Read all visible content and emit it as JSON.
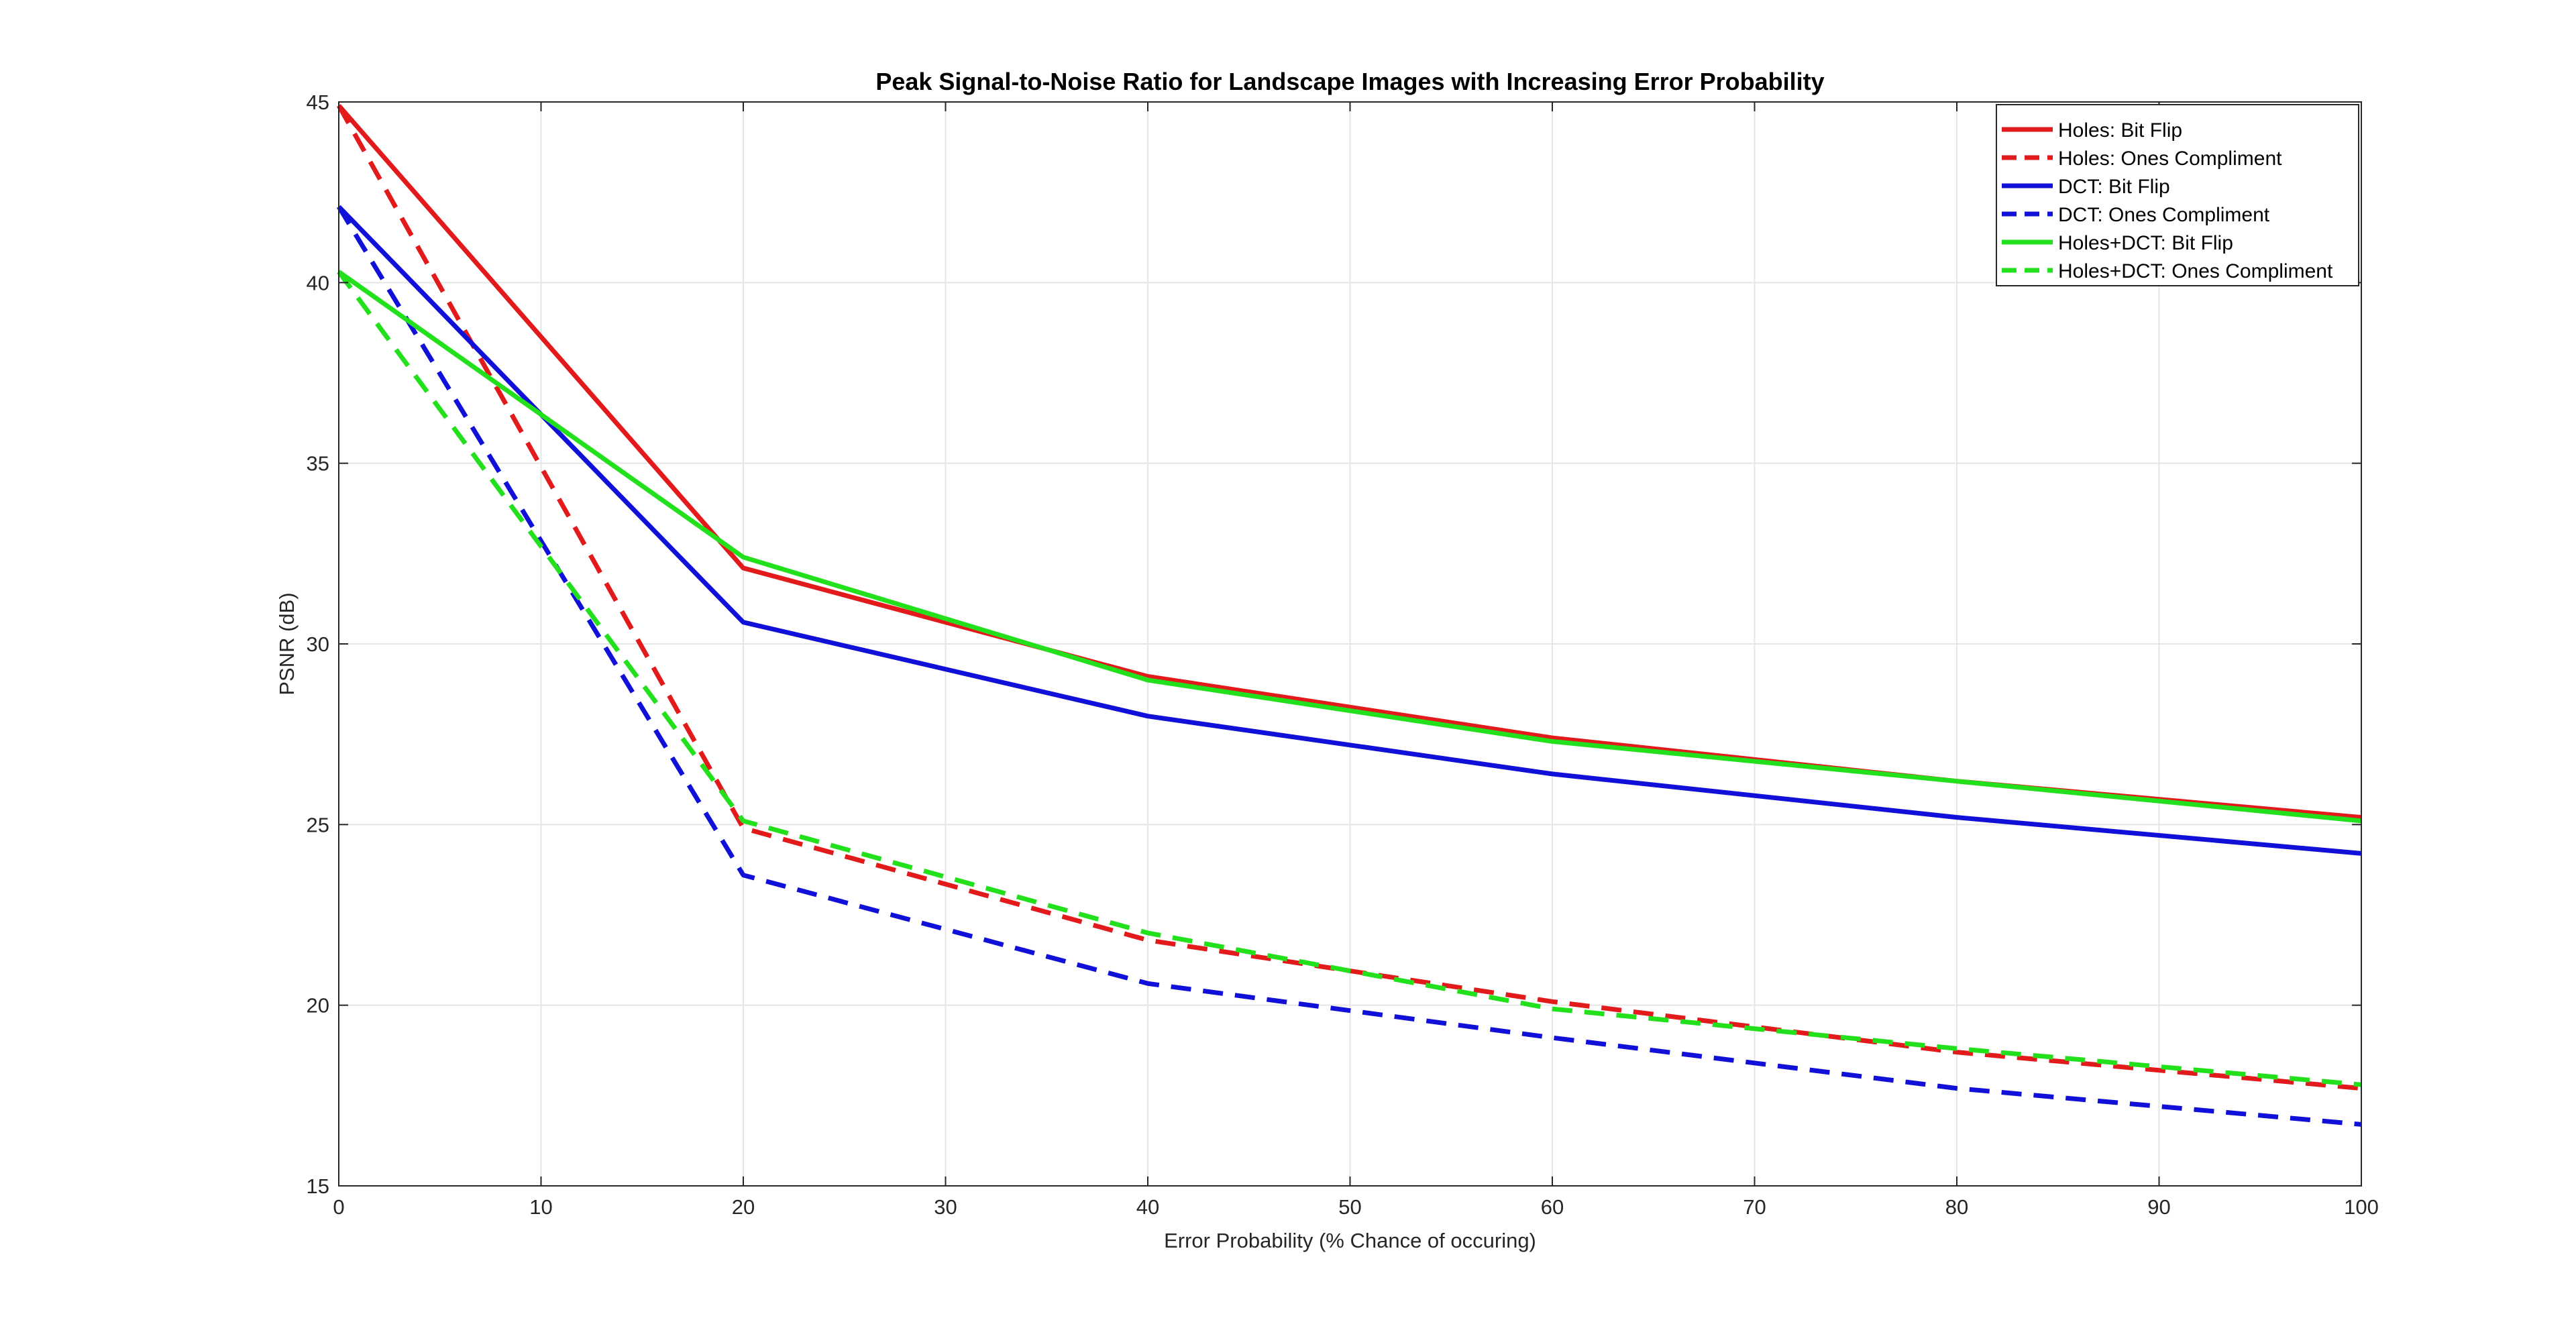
{
  "chart_data": {
    "type": "line",
    "title": "Peak Signal-to-Noise Ratio for Landscape Images with Increasing Error Probability",
    "xlabel": "Error Probability (% Chance of occuring)",
    "ylabel": "PSNR (dB)",
    "xlim": [
      0,
      100
    ],
    "ylim": [
      15,
      45
    ],
    "xticks": [
      0,
      10,
      20,
      30,
      40,
      50,
      60,
      70,
      80,
      90,
      100
    ],
    "yticks": [
      15,
      20,
      25,
      30,
      35,
      40,
      45
    ],
    "grid": true,
    "legend_position": "top-right",
    "x": [
      0,
      20,
      40,
      60,
      80,
      100
    ],
    "series": [
      {
        "name": "Holes: Bit Flip",
        "color": "#e31a1c",
        "style": "solid",
        "values": [
          44.9,
          32.1,
          29.1,
          27.4,
          26.2,
          25.2
        ]
      },
      {
        "name": "Holes: Ones Compliment",
        "color": "#e31a1c",
        "style": "dashed",
        "values": [
          44.9,
          24.9,
          21.8,
          20.1,
          18.7,
          17.7
        ]
      },
      {
        "name": "DCT: Bit Flip",
        "color": "#1010d8",
        "style": "solid",
        "values": [
          42.1,
          30.6,
          28.0,
          26.4,
          25.2,
          24.2
        ]
      },
      {
        "name": "DCT: Ones Compliment",
        "color": "#1010d8",
        "style": "dashed",
        "values": [
          42.1,
          23.6,
          20.6,
          19.1,
          17.7,
          16.7
        ]
      },
      {
        "name": "Holes+DCT: Bit Flip",
        "color": "#22e01c",
        "style": "solid",
        "values": [
          40.3,
          32.4,
          29.0,
          27.3,
          26.2,
          25.1
        ]
      },
      {
        "name": "Holes+DCT: Ones Compliment",
        "color": "#22e01c",
        "style": "dashed",
        "values": [
          40.3,
          25.1,
          22.0,
          19.9,
          18.8,
          17.8
        ]
      }
    ]
  }
}
